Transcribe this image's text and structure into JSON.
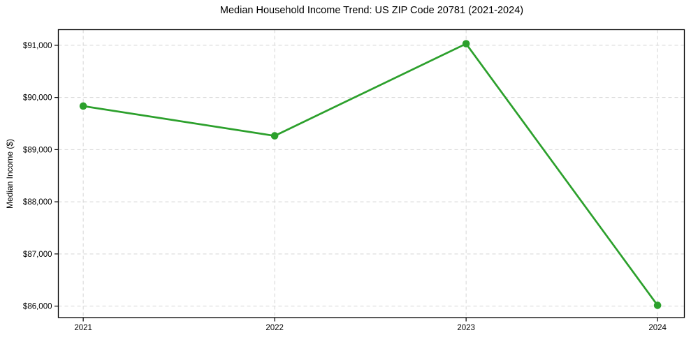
{
  "chart_data": {
    "type": "line",
    "title": "Median Household Income Trend: US ZIP Code 20781 (2021-2024)",
    "xlabel": "",
    "ylabel": "Median Income ($)",
    "x": [
      2021,
      2022,
      2023,
      2024
    ],
    "values": [
      89835,
      89265,
      91030,
      86015
    ],
    "xticks": [
      {
        "value": 2021,
        "label": "2021"
      },
      {
        "value": 2022,
        "label": "2022"
      },
      {
        "value": 2023,
        "label": "2023"
      },
      {
        "value": 2024,
        "label": "2024"
      }
    ],
    "yticks": [
      {
        "value": 86000,
        "label": "$86,000"
      },
      {
        "value": 87000,
        "label": "$87,000"
      },
      {
        "value": 88000,
        "label": "$88,000"
      },
      {
        "value": 89000,
        "label": "$89,000"
      },
      {
        "value": 90000,
        "label": "$90,000"
      },
      {
        "value": 91000,
        "label": "$91,000"
      }
    ],
    "xlim": [
      2020.87,
      2024.14
    ],
    "ylim": [
      85780,
      91300
    ],
    "grid": "dashed, both axes",
    "legend": "none",
    "marker": "circle",
    "colors": {
      "line": "#2ca02c",
      "marker": "#2ca02c",
      "grid": "#d5d5d5",
      "axis": "#000000",
      "text": "#000000",
      "background": "#ffffff"
    }
  }
}
